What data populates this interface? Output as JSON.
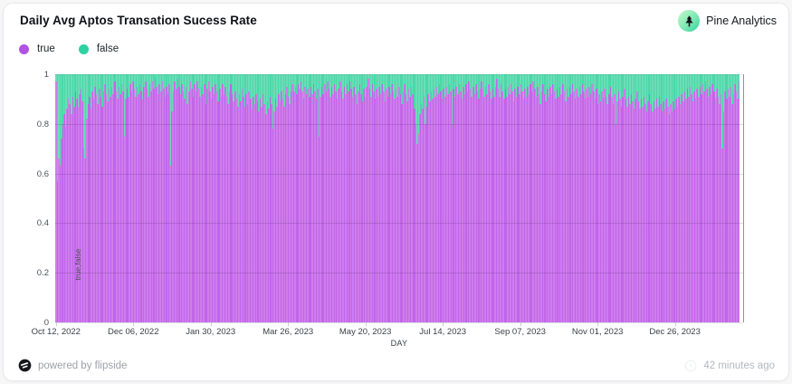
{
  "header": {
    "title": "Daily Avg Aptos Transation Sucess Rate",
    "brand_name": "Pine Analytics"
  },
  "legend": [
    {
      "label": "true",
      "color": "#b152e3"
    },
    {
      "label": "false",
      "color": "#2ed1a2"
    }
  ],
  "footer": {
    "powered_by": "powered by flipside",
    "updated": "42 minutes ago"
  },
  "colors": {
    "bar_true": "#c364e9",
    "bar_false": "#4cd7a8"
  },
  "chart_data": {
    "type": "bar",
    "stacked": true,
    "stack_total": 1,
    "title": "Daily Avg Aptos Transation Sucess Rate",
    "xlabel": "DAY",
    "ylabel": "true,false",
    "ylim": [
      0,
      1
    ],
    "grid": true,
    "legend_position": "top-left",
    "y_tick_labels": [
      "0",
      "0.2",
      "0.4",
      "0.6",
      "0.8",
      "1"
    ],
    "x_tick_labels": [
      "Oct 12, 2022",
      "Dec 06, 2022",
      "Jan 30, 2023",
      "Mar 26, 2023",
      "May 20, 2023",
      "Jul 14, 2023",
      "Sep 07, 2023",
      "Nov 01, 2023",
      "Dec 26, 2023"
    ],
    "x_tick_day_indices": [
      0,
      55,
      110,
      165,
      220,
      275,
      330,
      385,
      440
    ],
    "x_start_label": "Oct 12, 2022",
    "x_unit": "day",
    "series": [
      {
        "name": "true",
        "color": "#c364e9",
        "values": [
          0.97,
          0.57,
          0.66,
          0.63,
          0.74,
          0.8,
          0.84,
          0.79,
          0.86,
          0.9,
          0.88,
          0.84,
          0.91,
          0.87,
          0.93,
          0.9,
          0.87,
          0.92,
          0.94,
          0.89,
          0.7,
          0.66,
          0.82,
          0.88,
          0.91,
          0.86,
          0.93,
          0.9,
          0.95,
          0.92,
          0.88,
          0.94,
          0.91,
          0.87,
          0.93,
          0.96,
          0.92,
          0.89,
          0.94,
          0.91,
          0.95,
          0.92,
          0.97,
          0.93,
          0.9,
          0.95,
          0.92,
          0.96,
          0.93,
          0.75,
          0.9,
          0.94,
          0.91,
          0.96,
          0.93,
          0.97,
          0.94,
          0.91,
          0.95,
          0.92,
          0.96,
          0.93,
          0.9,
          0.95,
          0.97,
          0.94,
          0.91,
          0.96,
          0.93,
          0.97,
          0.94,
          0.98,
          0.95,
          0.92,
          0.96,
          0.93,
          0.97,
          0.94,
          0.91,
          0.95,
          0.92,
          0.96,
          0.63,
          0.85,
          0.93,
          0.97,
          0.94,
          0.98,
          0.95,
          0.92,
          0.96,
          0.93,
          0.9,
          0.95,
          0.88,
          0.93,
          0.97,
          0.94,
          0.91,
          0.96,
          0.93,
          0.97,
          0.94,
          0.91,
          0.95,
          0.92,
          0.96,
          0.88,
          0.94,
          0.97,
          0.93,
          0.9,
          0.95,
          0.92,
          0.96,
          0.93,
          0.89,
          0.94,
          0.91,
          0.96,
          0.92,
          0.95,
          0.91,
          0.88,
          0.93,
          0.96,
          0.92,
          0.89,
          0.93,
          0.9,
          0.87,
          0.92,
          0.89,
          0.94,
          0.91,
          0.87,
          0.92,
          0.88,
          0.93,
          0.9,
          0.86,
          0.91,
          0.88,
          0.92,
          0.89,
          0.85,
          0.9,
          0.87,
          0.92,
          0.88,
          0.84,
          0.89,
          0.86,
          0.91,
          0.88,
          0.78,
          0.85,
          0.9,
          0.87,
          0.92,
          0.89,
          0.93,
          0.9,
          0.87,
          0.92,
          0.95,
          0.91,
          0.88,
          0.93,
          0.96,
          0.93,
          0.95,
          0.92,
          0.96,
          0.94,
          0.97,
          0.93,
          0.9,
          0.95,
          0.92,
          0.94,
          0.91,
          0.95,
          0.92,
          0.96,
          0.93,
          0.9,
          0.94,
          0.75,
          0.91,
          0.95,
          0.92,
          0.96,
          0.93,
          0.97,
          0.94,
          0.91,
          0.95,
          0.92,
          0.96,
          0.93,
          0.9,
          0.94,
          0.97,
          0.93,
          0.9,
          0.95,
          0.92,
          0.96,
          0.93,
          0.97,
          0.94,
          0.91,
          0.95,
          0.92,
          0.88,
          0.93,
          0.96,
          0.92,
          0.89,
          0.94,
          0.91,
          0.95,
          0.98,
          0.94,
          0.91,
          0.96,
          0.93,
          0.9,
          0.94,
          0.91,
          0.95,
          0.92,
          0.96,
          0.93,
          0.89,
          0.94,
          0.91,
          0.95,
          0.92,
          0.96,
          0.93,
          0.9,
          0.94,
          0.91,
          0.95,
          0.92,
          0.88,
          0.93,
          0.96,
          0.92,
          0.89,
          0.94,
          0.91,
          0.95,
          0.92,
          0.86,
          0.8,
          0.72,
          0.76,
          0.84,
          0.88,
          0.86,
          0.91,
          0.8,
          0.87,
          0.92,
          0.89,
          0.93,
          0.9,
          0.94,
          0.91,
          0.95,
          0.92,
          0.96,
          0.93,
          0.9,
          0.94,
          0.91,
          0.95,
          0.92,
          0.96,
          0.93,
          0.8,
          0.94,
          0.91,
          0.95,
          0.92,
          0.96,
          0.93,
          0.9,
          0.95,
          0.92,
          0.96,
          0.93,
          0.97,
          0.94,
          0.91,
          0.95,
          0.92,
          0.96,
          0.93,
          0.9,
          0.94,
          0.97,
          0.94,
          0.91,
          0.95,
          0.92,
          0.96,
          0.93,
          0.9,
          0.94,
          0.91,
          0.95,
          0.98,
          0.94,
          0.91,
          0.96,
          0.93,
          0.9,
          0.94,
          0.91,
          0.95,
          0.92,
          0.96,
          0.93,
          0.89,
          0.94,
          0.91,
          0.95,
          0.92,
          0.96,
          0.93,
          0.9,
          0.94,
          0.91,
          0.95,
          0.92,
          0.96,
          0.93,
          0.97,
          0.94,
          0.91,
          0.95,
          0.92,
          0.88,
          0.93,
          0.96,
          0.92,
          0.89,
          0.94,
          0.91,
          0.95,
          0.92,
          0.96,
          0.93,
          0.9,
          0.94,
          0.91,
          0.95,
          0.92,
          0.96,
          0.93,
          0.89,
          0.94,
          0.91,
          0.95,
          0.92,
          0.96,
          0.93,
          0.9,
          0.94,
          0.91,
          0.95,
          0.92,
          0.96,
          0.93,
          0.9,
          0.94,
          0.91,
          0.95,
          0.92,
          0.96,
          0.93,
          0.9,
          0.94,
          0.88,
          0.92,
          0.89,
          0.93,
          0.9,
          0.94,
          0.91,
          0.88,
          0.92,
          0.95,
          0.91,
          0.88,
          0.92,
          0.8,
          0.89,
          0.93,
          0.9,
          0.87,
          0.91,
          0.94,
          0.9,
          0.87,
          0.91,
          0.88,
          0.92,
          0.89,
          0.86,
          0.9,
          0.93,
          0.89,
          0.86,
          0.9,
          0.87,
          0.91,
          0.88,
          0.85,
          0.89,
          0.92,
          0.88,
          0.85,
          0.89,
          0.86,
          0.9,
          0.87,
          0.91,
          0.88,
          0.85,
          0.89,
          0.86,
          0.9,
          0.87,
          0.84,
          0.88,
          0.85,
          0.89,
          0.86,
          0.9,
          0.87,
          0.91,
          0.88,
          0.92,
          0.89,
          0.93,
          0.9,
          0.94,
          0.91,
          0.95,
          0.92,
          0.89,
          0.93,
          0.9,
          0.94,
          0.91,
          0.95,
          0.92,
          0.96,
          0.93,
          0.97,
          0.94,
          0.91,
          0.95,
          0.92,
          0.96,
          0.93,
          0.9,
          0.94,
          0.91,
          0.88,
          0.92,
          0.7,
          0.85,
          0.93,
          0.9,
          0.94,
          0.91,
          0.95,
          0.88,
          0.92,
          0.96,
          0.93,
          0.9,
          0.97
        ]
      },
      {
        "name": "false",
        "color": "#4cd7a8",
        "values_rule": "complement_to_1"
      }
    ]
  }
}
